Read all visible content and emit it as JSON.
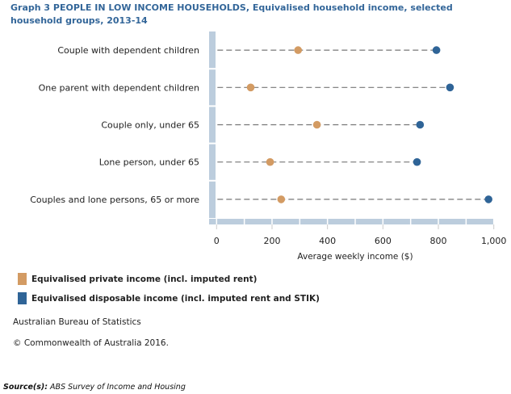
{
  "chart_data": {
    "type": "dumbbell",
    "title": "Graph 3 PEOPLE IN LOW INCOME HOUSEHOLDS, Equivalised household income, selected household groups, 2013-14",
    "xlabel": "Average weekly income ($)",
    "ylabel": "",
    "xlim": [
      0,
      1000
    ],
    "xticks": [
      "0",
      "200",
      "400",
      "600",
      "800",
      "1,000"
    ],
    "grid": false,
    "legend": "bottom-left",
    "categories": [
      "Couple with dependent children",
      "One parent with dependent children",
      "Couple only, under 65",
      "Lone person, under 65",
      "Couples and lone persons, 65 or more"
    ],
    "series": [
      {
        "name": "Equivalised private income (incl. imputed rent)",
        "color": "#d39b63",
        "values": [
          294,
          123,
          362,
          193,
          233
        ]
      },
      {
        "name": "Equivalised disposable income (incl. imputed rent and STIK)",
        "color": "#2f6497",
        "values": [
          793,
          842,
          734,
          723,
          981
        ]
      }
    ]
  },
  "footer": {
    "org": "Australian Bureau of Statistics",
    "copyright": "© Commonwealth of Australia 2016.",
    "source_label": "Source(s):",
    "source_text": " ABS Survey of Income and Housing"
  }
}
